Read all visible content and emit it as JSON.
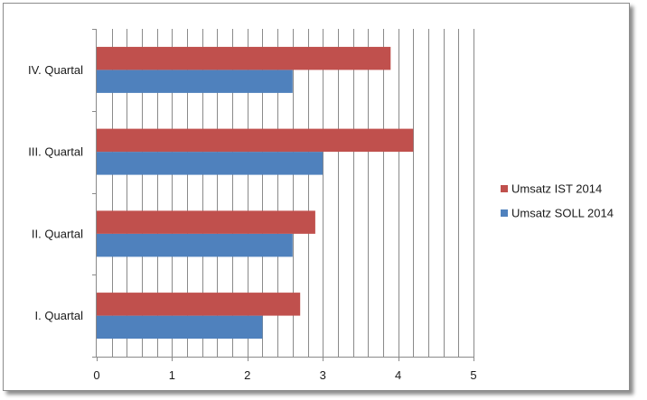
{
  "chart_data": {
    "type": "bar",
    "orientation": "horizontal",
    "categories": [
      "I. Quartal",
      "II. Quartal",
      "III. Quartal",
      "IV. Quartal"
    ],
    "series": [
      {
        "name": "Umsatz SOLL 2014",
        "color": "#4F81BD",
        "values": [
          2.2,
          2.6,
          3.0,
          2.6
        ]
      },
      {
        "name": "Umsatz IST 2014",
        "color": "#C0504D",
        "values": [
          2.7,
          2.9,
          4.2,
          3.9
        ]
      }
    ],
    "xlim": [
      0,
      5
    ],
    "x_ticks": [
      "0",
      "1",
      "2",
      "3",
      "4",
      "5"
    ],
    "x_minor_step": 0.2,
    "grid": "vertical",
    "legend": {
      "position": "right",
      "order": [
        "Umsatz IST 2014",
        "Umsatz SOLL 2014"
      ]
    },
    "title": "",
    "xlabel": "",
    "ylabel": ""
  }
}
